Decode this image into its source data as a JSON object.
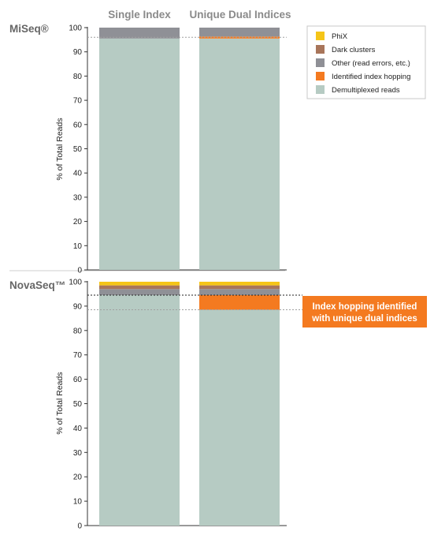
{
  "colors": {
    "PhiX": "#f5c518",
    "Dark clusters": "#a8755a",
    "Other (read errors, etc.)": "#8f9096",
    "Identified index hopping": "#f47a20",
    "Demultiplexed reads": "#b6cbc3",
    "callout_bg": "#f47a20"
  },
  "columns": [
    "Single Index",
    "Unique Dual Indices"
  ],
  "legend": {
    "items": [
      {
        "label": "PhiX",
        "color": "#f5c518"
      },
      {
        "label": "Dark clusters",
        "color": "#a8755a"
      },
      {
        "label": "Other (read errors, etc.)",
        "color": "#8f9096"
      },
      {
        "label": "Identified index hopping",
        "color": "#f47a20"
      },
      {
        "label": "Demultiplexed reads",
        "color": "#b6cbc3"
      }
    ]
  },
  "callout": {
    "line1": "Index hopping identified",
    "line2": "with unique dual indices"
  },
  "chart_data": [
    {
      "type": "bar",
      "stacked": true,
      "title": "MiSeq®",
      "categories": [
        "Single Index",
        "Unique Dual Indices"
      ],
      "ylabel": "% of Total Reads",
      "ylim": [
        0,
        100
      ],
      "yticks": [
        0,
        10,
        20,
        30,
        40,
        50,
        60,
        70,
        80,
        90,
        100
      ],
      "series": [
        {
          "name": "Demultiplexed reads",
          "values": [
            95.5,
            95.5
          ]
        },
        {
          "name": "Identified index hopping",
          "values": [
            0,
            0.8
          ]
        },
        {
          "name": "Other (read errors, etc.)",
          "values": [
            4.5,
            3.7
          ]
        }
      ],
      "reference_line": 96
    },
    {
      "type": "bar",
      "stacked": true,
      "title": "NovaSeq™",
      "categories": [
        "Single Index",
        "Unique Dual Indices"
      ],
      "ylabel": "% of Total Reads",
      "ylim": [
        0,
        100
      ],
      "yticks": [
        0,
        10,
        20,
        30,
        40,
        50,
        60,
        70,
        80,
        90,
        100
      ],
      "series": [
        {
          "name": "Demultiplexed reads",
          "values": [
            94.5,
            88.5
          ]
        },
        {
          "name": "Identified index hopping",
          "values": [
            0,
            6
          ]
        },
        {
          "name": "Other (read errors, etc.)",
          "values": [
            2.5,
            2.5
          ]
        },
        {
          "name": "Dark clusters",
          "values": [
            1.5,
            1.5
          ]
        },
        {
          "name": "PhiX",
          "values": [
            1.5,
            1.5
          ]
        }
      ],
      "reference_lines": [
        94.5,
        88.5
      ]
    }
  ]
}
